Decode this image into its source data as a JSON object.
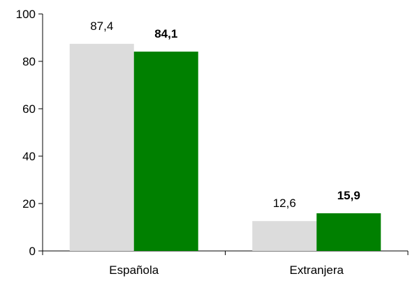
{
  "chart_data": {
    "type": "bar",
    "categories": [
      "Española",
      "Extranjera"
    ],
    "series": [
      {
        "values": [
          87.4,
          12.6
        ],
        "labels": [
          "87,4",
          "12,6"
        ],
        "color": "#dcdcdc",
        "label_bold": false
      },
      {
        "values": [
          84.1,
          15.9
        ],
        "labels": [
          "84,1",
          "15,9"
        ],
        "color": "#008000",
        "label_bold": true
      }
    ],
    "ylim": [
      0,
      100
    ],
    "yticks": [
      0,
      20,
      40,
      60,
      80,
      100
    ],
    "ytick_labels": [
      "0",
      "20",
      "40",
      "60",
      "80",
      "100"
    ],
    "grid": false,
    "title": "",
    "xlabel": "",
    "ylabel": ""
  }
}
